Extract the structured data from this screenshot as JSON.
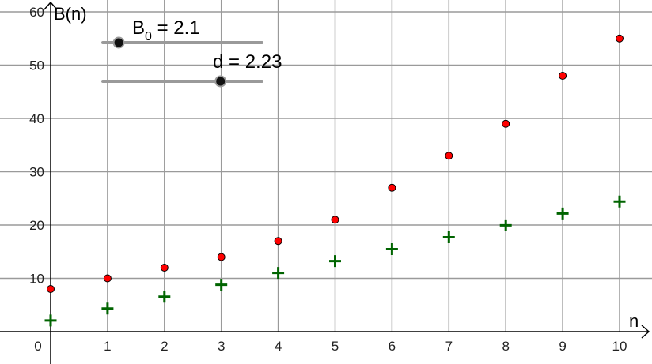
{
  "chart_data": {
    "type": "scatter",
    "xlabel": "n",
    "ylabel": "B(n)",
    "xlim": [
      0,
      10
    ],
    "ylim": [
      0,
      60
    ],
    "x_ticks": [
      0,
      1,
      2,
      3,
      4,
      5,
      6,
      7,
      8,
      9,
      10
    ],
    "y_ticks": [
      10,
      20,
      30,
      40,
      50,
      60
    ],
    "grid": true,
    "series": [
      {
        "marker": "circle",
        "color": "#ff0000",
        "x": [
          0,
          1,
          2,
          3,
          4,
          5,
          6,
          7,
          8,
          9,
          10
        ],
        "values": [
          8,
          10,
          12,
          14,
          17,
          21,
          27,
          33,
          39,
          48,
          55
        ]
      },
      {
        "marker": "cross",
        "color": "#006400",
        "x": [
          0,
          1,
          2,
          3,
          4,
          5,
          6,
          7,
          8,
          9,
          10
        ],
        "values": [
          2.1,
          4.33,
          6.56,
          8.79,
          11.02,
          13.25,
          15.48,
          17.71,
          19.94,
          22.17,
          24.4
        ]
      }
    ]
  },
  "sliders": [
    {
      "name": "B",
      "subscript": "0",
      "suffix": " = 2.1",
      "fraction": 0.1
    },
    {
      "name": "d",
      "subscript": "",
      "suffix": " = 2.23",
      "fraction": 0.74
    }
  ],
  "colors": {
    "grid": "#9a9a9a",
    "axis": "#000000",
    "slider_track": "#9a9a9a",
    "slider_knob": "#111111"
  }
}
